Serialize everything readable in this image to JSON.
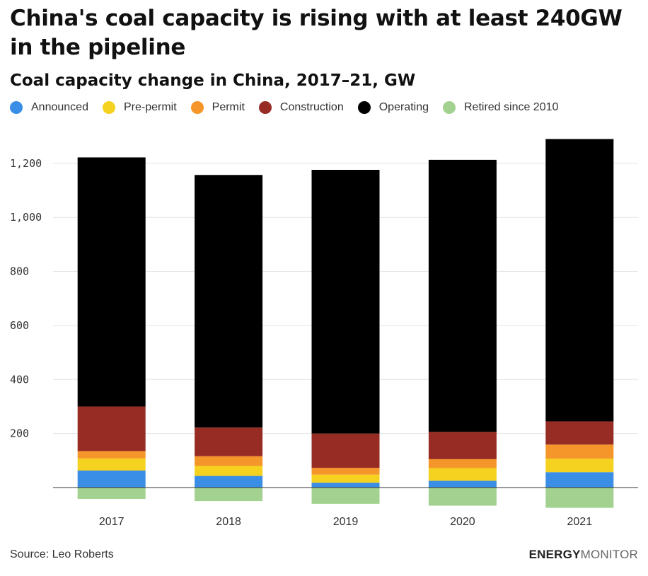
{
  "header": {
    "title": "China's coal capacity is rising with at least 240GW in the pipeline",
    "subtitle": "Coal capacity change in China, 2017–21, GW"
  },
  "footer": {
    "source": "Source: Leo Roberts",
    "brand_bold": "ENERGY",
    "brand_light": "MONITOR"
  },
  "colors": {
    "Announced": "#3a8ee6",
    "Pre-permit": "#f5d21f",
    "Permit": "#f5962a",
    "Construction": "#962c24",
    "Operating": "#000000",
    "Retired since 2010": "#a3d18f"
  },
  "chart_data": {
    "type": "bar",
    "stacked": true,
    "title": "Coal capacity change in China, 2017–21, GW",
    "xlabel": "",
    "ylabel": "",
    "categories": [
      "2017",
      "2018",
      "2019",
      "2020",
      "2021"
    ],
    "ylim": [
      -80,
      1300
    ],
    "yticks": [
      200,
      400,
      600,
      800,
      1000,
      1200
    ],
    "ytick_labels": [
      "200",
      "400",
      "600",
      "800",
      "1,000",
      "1,200"
    ],
    "grid": true,
    "legend_position": "top-left",
    "series": [
      {
        "name": "Announced",
        "values": [
          63,
          43,
          18,
          25,
          57
        ]
      },
      {
        "name": "Pre-permit",
        "values": [
          45,
          37,
          30,
          47,
          50
        ]
      },
      {
        "name": "Permit",
        "values": [
          27,
          36,
          25,
          33,
          52
        ]
      },
      {
        "name": "Construction",
        "values": [
          165,
          106,
          127,
          101,
          86
        ]
      },
      {
        "name": "Operating",
        "values": [
          922,
          935,
          976,
          1007,
          1045
        ]
      },
      {
        "name": "Retired since 2010",
        "values": [
          -42,
          -50,
          -60,
          -67,
          -75
        ]
      }
    ]
  }
}
